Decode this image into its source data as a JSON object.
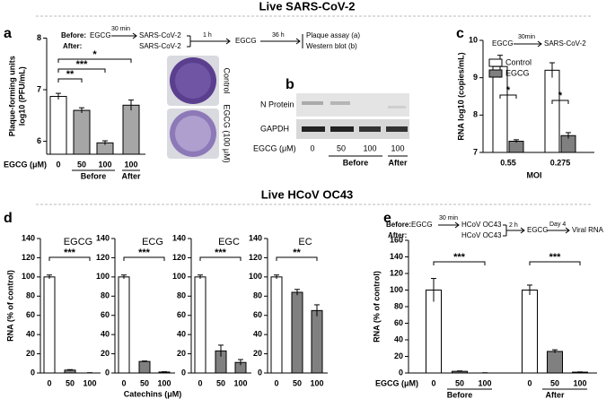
{
  "sections": [
    "Live SARS-CoV-2",
    "Live HCoV OC43"
  ],
  "image_labels": [
    "Control",
    "EGCG (100 μM)"
  ],
  "blot": {
    "panel": "b",
    "rows": [
      "N Protein",
      "GAPDH"
    ],
    "xlabel": "EGCG (μM)",
    "categories": [
      "0",
      "50",
      "100",
      "100"
    ],
    "groups": [
      "Before",
      "After"
    ]
  },
  "chart_data": [
    {
      "type": "bar",
      "panel": "a",
      "ylabel": [
        "Plaque-forming units",
        "log10 (PFU/mL)"
      ],
      "xlabel": "EGCG (μM)",
      "categories": [
        "0",
        "50",
        "100",
        "100"
      ],
      "groups": [
        "Before",
        "After"
      ],
      "values": [
        6.87,
        6.6,
        5.97,
        6.7
      ],
      "errors": [
        0.06,
        0.05,
        0.04,
        0.1
      ],
      "colors": [
        "#ffffff",
        "#a6a6a6",
        "#a6a6a6",
        "#a6a6a6"
      ],
      "ylim": [
        5.75,
        8
      ],
      "yticks": [
        6,
        7,
        8
      ],
      "significance": [
        "**",
        "***",
        "*"
      ],
      "protocol": [
        "Before:",
        "EGCG",
        "30 min",
        "SARS-CoV-2",
        "After:",
        "SARS-CoV-2",
        "1 h",
        "EGCG",
        "36 h",
        "Plaque assay (a)",
        "Western blot (b)"
      ]
    },
    {
      "type": "grouped_bar",
      "panel": "c",
      "ylabel": [
        "RNA log10 (copies/mL)"
      ],
      "xlabel": "MOI",
      "categories": [
        "0.55",
        "0.275"
      ],
      "series": [
        {
          "name": "Control",
          "color": "#ffffff",
          "values": [
            9.3,
            9.2
          ],
          "errors": [
            0.3,
            0.2
          ]
        },
        {
          "name": "EGCG",
          "color": "#808080",
          "values": [
            7.3,
            7.45
          ],
          "errors": [
            0.04,
            0.08
          ]
        }
      ],
      "ylim": [
        7,
        10
      ],
      "yticks": [
        7,
        8,
        9,
        10
      ],
      "significance": [
        "*",
        "*"
      ],
      "protocol": [
        "EGCG",
        "30min",
        "SARS-CoV-2"
      ]
    },
    {
      "type": "bar",
      "panel": "d",
      "title": "EGCG",
      "ylabel": [
        "RNA (% of control)"
      ],
      "xlabel": "Catechins (μM)",
      "categories": [
        "0",
        "50",
        "100"
      ],
      "values": [
        100,
        3,
        0
      ],
      "errors": [
        2,
        0.5,
        0.3
      ],
      "colors": [
        "#ffffff",
        "#808080",
        "#808080"
      ],
      "ylim": [
        0,
        140
      ],
      "yticks": [
        0,
        20,
        40,
        60,
        80,
        100,
        120,
        140
      ],
      "significance": [
        "***"
      ]
    },
    {
      "type": "bar",
      "title": "ECG",
      "categories": [
        "0",
        "50",
        "100"
      ],
      "values": [
        100,
        12,
        1
      ],
      "errors": [
        2,
        0.5,
        0.3
      ],
      "colors": [
        "#ffffff",
        "#808080",
        "#808080"
      ],
      "ylim": [
        0,
        140
      ],
      "yticks": [
        0,
        20,
        40,
        60,
        80,
        100,
        120,
        140
      ],
      "significance": [
        "***"
      ]
    },
    {
      "type": "bar",
      "title": "EGC",
      "categories": [
        "0",
        "50",
        "100"
      ],
      "values": [
        100,
        23,
        11
      ],
      "errors": [
        2,
        6,
        3
      ],
      "colors": [
        "#ffffff",
        "#808080",
        "#808080"
      ],
      "ylim": [
        0,
        140
      ],
      "yticks": [
        0,
        20,
        40,
        60,
        80,
        100,
        120,
        140
      ],
      "significance": [
        "***"
      ]
    },
    {
      "type": "bar",
      "title": "EC",
      "categories": [
        "0",
        "50",
        "100"
      ],
      "values": [
        100,
        84,
        65
      ],
      "errors": [
        2,
        3,
        6
      ],
      "colors": [
        "#ffffff",
        "#808080",
        "#808080"
      ],
      "ylim": [
        0,
        140
      ],
      "yticks": [
        0,
        20,
        40,
        60,
        80,
        100,
        120,
        140
      ],
      "significance": [
        "**"
      ]
    },
    {
      "type": "bar",
      "panel": "e",
      "ylabel": [
        "RNA (% of control)"
      ],
      "xlabel": "EGCG (μM)",
      "categories": [
        "0",
        "50",
        "100",
        "0",
        "50",
        "100"
      ],
      "groups": [
        "Before",
        "After"
      ],
      "values": [
        100,
        2,
        0,
        100,
        26,
        1
      ],
      "errors": [
        14,
        0.5,
        0.3,
        6,
        2,
        0.3
      ],
      "colors": [
        "#ffffff",
        "#808080",
        "#808080",
        "#ffffff",
        "#808080",
        "#808080"
      ],
      "ylim": [
        0,
        160
      ],
      "yticks": [
        0,
        20,
        40,
        60,
        80,
        100,
        120,
        140,
        160
      ],
      "significance": [
        "***",
        "***"
      ],
      "protocol": [
        "Before:",
        "EGCG",
        "30 min",
        "HCoV OC43",
        "After:",
        "HCoV OC43",
        "2 h",
        "EGCG",
        "Day 4",
        "Viral RNA"
      ]
    }
  ]
}
